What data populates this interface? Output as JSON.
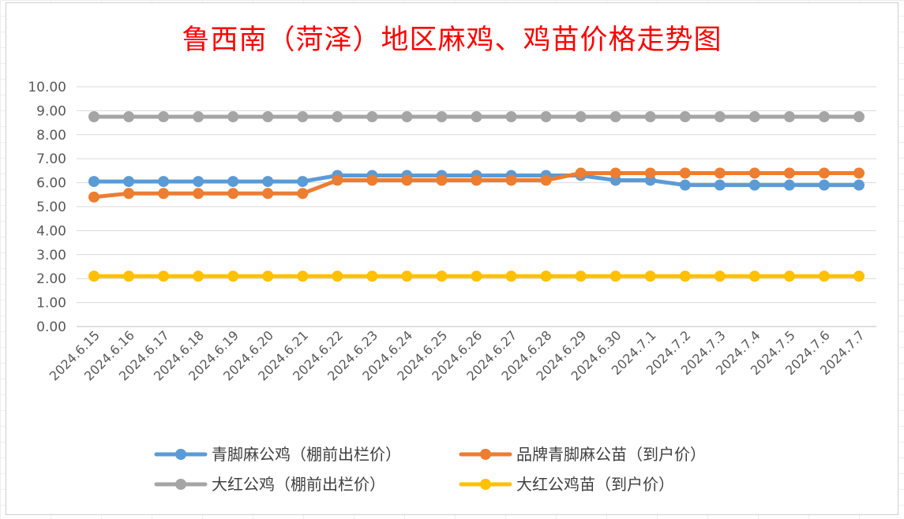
{
  "chart_data": {
    "type": "line",
    "title": "鲁西南（菏泽）地区麻鸡、鸡苗价格走势图",
    "categories": [
      "2024.6.15",
      "2024.6.16",
      "2024.6.17",
      "2024.6.18",
      "2024.6.19",
      "2024.6.20",
      "2024.6.21",
      "2024.6.22",
      "2024.6.23",
      "2024.6.24",
      "2024.6.25",
      "2024.6.26",
      "2024.6.27",
      "2024.6.28",
      "2024.6.29",
      "2024.6.30",
      "2024.7.1",
      "2024.7.2",
      "2024.7.3",
      "2024.7.4",
      "2024.7.5",
      "2024.7.6",
      "2024.7.7"
    ],
    "yticks": [
      "0.00",
      "1.00",
      "2.00",
      "3.00",
      "4.00",
      "5.00",
      "6.00",
      "7.00",
      "8.00",
      "9.00",
      "10.00"
    ],
    "ylim": [
      0,
      10
    ],
    "grid": true,
    "legend_position": "bottom",
    "series": [
      {
        "name": "青脚麻公鸡（棚前出栏价）",
        "color": "#5b9bd5",
        "values": [
          6.05,
          6.05,
          6.05,
          6.05,
          6.05,
          6.05,
          6.05,
          6.3,
          6.3,
          6.3,
          6.3,
          6.3,
          6.3,
          6.3,
          6.3,
          6.1,
          6.1,
          5.9,
          5.9,
          5.9,
          5.9,
          5.9,
          5.9
        ]
      },
      {
        "name": "品牌青脚麻公苗（到户价）",
        "color": "#ed7d31",
        "values": [
          5.4,
          5.55,
          5.55,
          5.55,
          5.55,
          5.55,
          5.55,
          6.1,
          6.1,
          6.1,
          6.1,
          6.1,
          6.1,
          6.1,
          6.4,
          6.4,
          6.4,
          6.4,
          6.4,
          6.4,
          6.4,
          6.4,
          6.4
        ]
      },
      {
        "name": "大红公鸡（棚前出栏价）",
        "color": "#a5a5a5",
        "values": [
          8.75,
          8.75,
          8.75,
          8.75,
          8.75,
          8.75,
          8.75,
          8.75,
          8.75,
          8.75,
          8.75,
          8.75,
          8.75,
          8.75,
          8.75,
          8.75,
          8.75,
          8.75,
          8.75,
          8.75,
          8.75,
          8.75,
          8.75
        ]
      },
      {
        "name": "大红公鸡苗（到户价）",
        "color": "#ffc000",
        "values": [
          2.1,
          2.1,
          2.1,
          2.1,
          2.1,
          2.1,
          2.1,
          2.1,
          2.1,
          2.1,
          2.1,
          2.1,
          2.1,
          2.1,
          2.1,
          2.1,
          2.1,
          2.1,
          2.1,
          2.1,
          2.1,
          2.1,
          2.1
        ]
      }
    ]
  }
}
